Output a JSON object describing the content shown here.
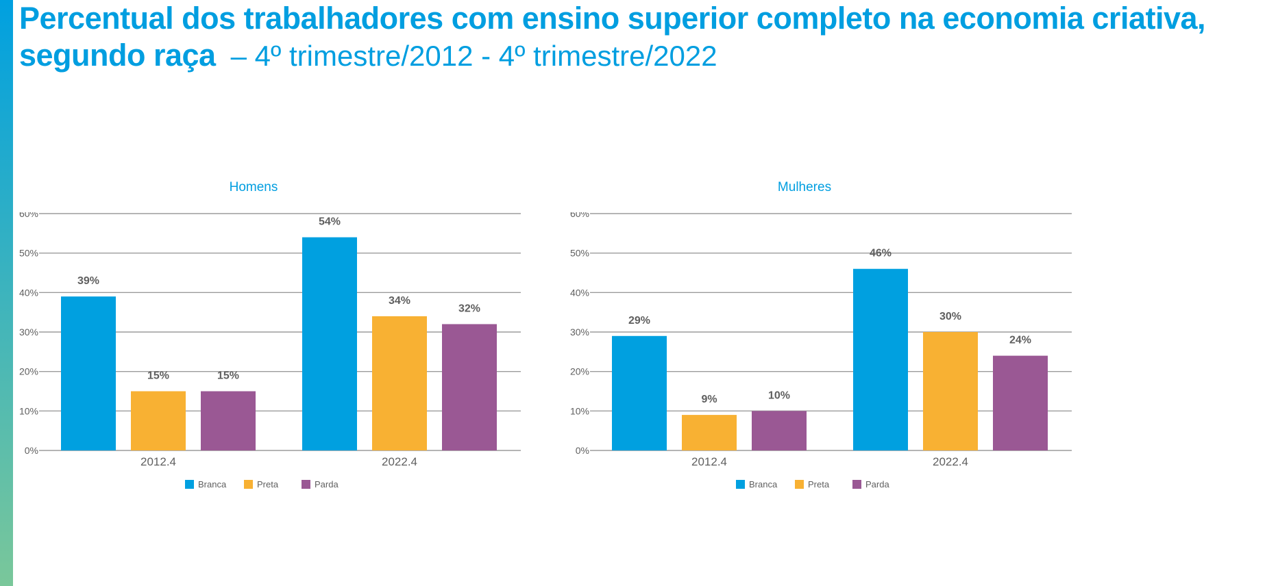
{
  "title": {
    "line1": "Percentual dos trabalhadores com ensino superior completo na economia criativa,",
    "line2_bold": "segundo raça",
    "line2_period": "– 4º trimestre/2012 - 4º trimestre/2022"
  },
  "colors": {
    "accent": "#009ee0",
    "Branca": "#00a0e0",
    "Preta": "#f8b133",
    "Parda": "#9a5894",
    "grid": "#9b9b9b",
    "text": "#5f5f5f"
  },
  "chart_data": [
    {
      "type": "bar",
      "title": "Homens",
      "categories": [
        "2012.4",
        "2022.4"
      ],
      "series": [
        {
          "name": "Branca",
          "values": [
            39,
            54
          ],
          "labels": [
            "39%",
            "54%"
          ]
        },
        {
          "name": "Preta",
          "values": [
            15,
            34
          ],
          "labels": [
            "15%",
            "34%"
          ]
        },
        {
          "name": "Parda",
          "values": [
            15,
            32
          ],
          "labels": [
            "15%",
            "32%"
          ]
        }
      ],
      "ylim": [
        0,
        60
      ],
      "yticks": [
        "0%",
        "10%",
        "20%",
        "30%",
        "40%",
        "50%",
        "60%"
      ],
      "grid": true,
      "legend": "bottom"
    },
    {
      "type": "bar",
      "title": "Mulheres",
      "categories": [
        "2012.4",
        "2022.4"
      ],
      "series": [
        {
          "name": "Branca",
          "values": [
            29,
            46
          ],
          "labels": [
            "29%",
            "46%"
          ]
        },
        {
          "name": "Preta",
          "values": [
            9,
            30
          ],
          "labels": [
            "9%",
            "30%"
          ]
        },
        {
          "name": "Parda",
          "values": [
            10,
            24
          ],
          "labels": [
            "10%",
            "24%"
          ]
        }
      ],
      "ylim": [
        0,
        60
      ],
      "yticks": [
        "0%",
        "10%",
        "20%",
        "30%",
        "40%",
        "50%",
        "60%"
      ],
      "grid": true,
      "legend": "bottom"
    }
  ]
}
